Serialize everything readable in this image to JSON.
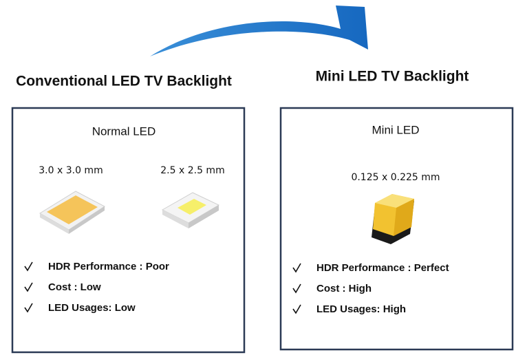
{
  "left": {
    "heading": "Conventional LED TV Backlight",
    "box_title": "Normal LED",
    "sizes": [
      "3.0 x 3.0 mm",
      "2.5 x 2.5 mm"
    ],
    "features": [
      "HDR Performance : Poor",
      "Cost : Low",
      "LED Usages: Low"
    ]
  },
  "right": {
    "heading": "Mini LED TV Backlight",
    "box_title": "Mini LED",
    "sizes": [
      "0.125 x 0.225 mm"
    ],
    "features": [
      "HDR Performance : Perfect",
      "Cost : High",
      "LED Usages: High"
    ]
  }
}
